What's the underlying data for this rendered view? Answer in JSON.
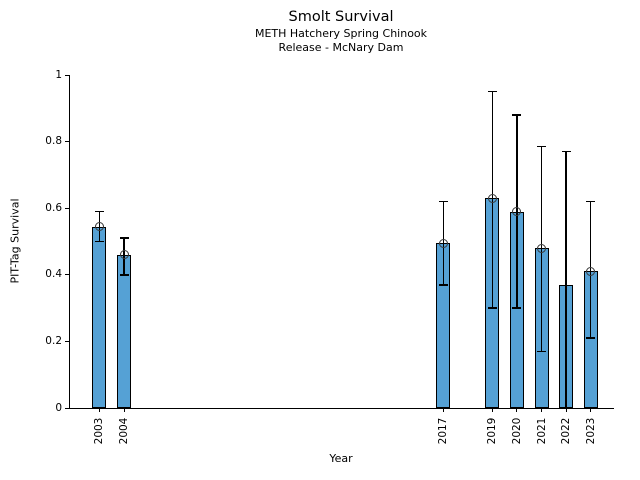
{
  "header": {
    "title": "Smolt Survival",
    "subtitle_line1": "METH Hatchery Spring Chinook",
    "subtitle_line2": "Release - McNary Dam"
  },
  "chart_data": {
    "type": "bar",
    "title": "Smolt Survival",
    "subtitle": [
      "METH Hatchery Spring Chinook",
      "Release - McNary Dam"
    ],
    "xlabel": "Year",
    "ylabel": "PIT-Tag Survival",
    "ylim": [
      0,
      1
    ],
    "xlim": [
      2001.8,
      2023.95
    ],
    "yticks": [
      0,
      0.2,
      0.4,
      0.6,
      0.8,
      1
    ],
    "ytick_labels": [
      "0",
      "0.2",
      "0.4",
      "0.6",
      "0.8",
      "1"
    ],
    "grid": false,
    "legend": null,
    "bar_color": "#55A1D5",
    "bar_edge_color": "#000000",
    "error_color": "#000000",
    "marker_style": "open-circle",
    "categories": [
      2003,
      2004,
      2017,
      2019,
      2020,
      2021,
      2022,
      2023
    ],
    "points": [
      {
        "year": 2003,
        "value": 0.545,
        "ci_low": 0.5,
        "ci_high": 0.59,
        "marker": true
      },
      {
        "year": 2004,
        "value": 0.46,
        "ci_low": 0.4,
        "ci_high": 0.51,
        "marker": true
      },
      {
        "year": 2017,
        "value": 0.495,
        "ci_low": 0.37,
        "ci_high": 0.62,
        "marker": true
      },
      {
        "year": 2019,
        "value": 0.63,
        "ci_low": 0.3,
        "ci_high": 0.95,
        "marker": true
      },
      {
        "year": 2020,
        "value": 0.59,
        "ci_low": 0.3,
        "ci_high": 0.88,
        "marker": true
      },
      {
        "year": 2021,
        "value": 0.48,
        "ci_low": 0.17,
        "ci_high": 0.785,
        "marker": true
      },
      {
        "year": 2022,
        "value": 0.37,
        "ci_low": 0.0,
        "ci_high": 0.77,
        "marker": false
      },
      {
        "year": 2023,
        "value": 0.41,
        "ci_low": 0.21,
        "ci_high": 0.62,
        "marker": true
      }
    ]
  }
}
